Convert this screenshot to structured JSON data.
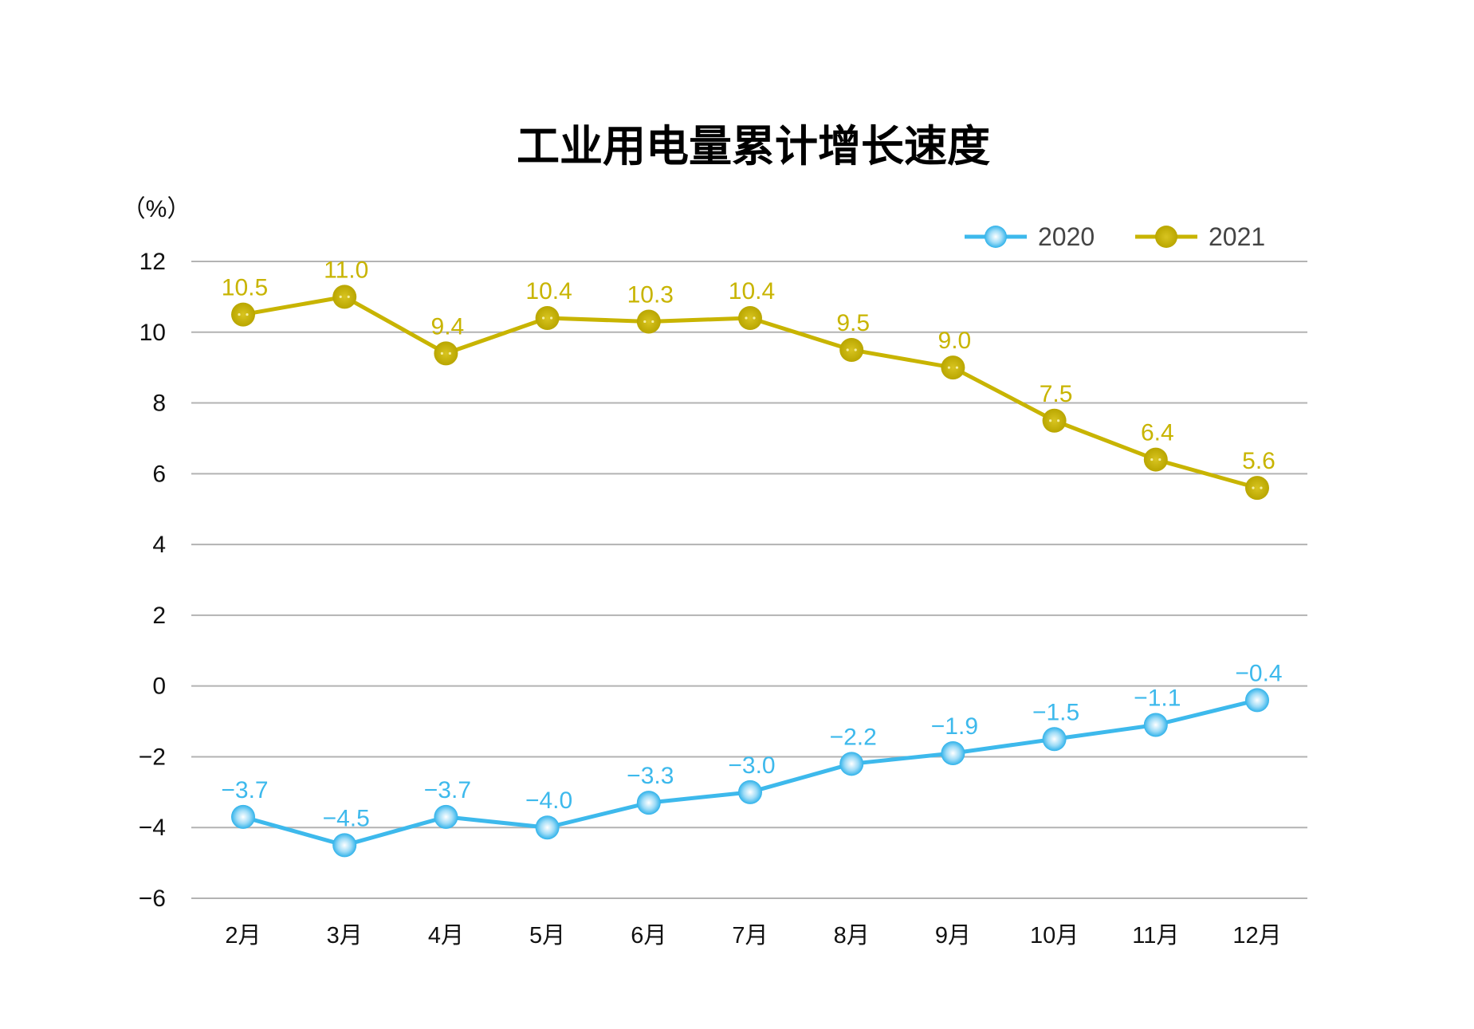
{
  "chart_data": {
    "type": "line",
    "title": "工业用电量累计增长速度",
    "ylabel": "（%）",
    "xlabel": "",
    "categories": [
      "2月",
      "3月",
      "4月",
      "5月",
      "6月",
      "7月",
      "8月",
      "9月",
      "10月",
      "11月",
      "12月"
    ],
    "ylim": [
      -6,
      12
    ],
    "yticks": [
      12,
      10,
      8,
      6,
      4,
      2,
      0,
      -2,
      -4,
      -6
    ],
    "ytick_labels": [
      "12",
      "10",
      "8",
      "6",
      "4",
      "2",
      "0",
      "−2",
      "−4",
      "−6"
    ],
    "grid": true,
    "legend_position": "top-right",
    "series": [
      {
        "name": "2020",
        "color": "#3db9ec",
        "values": [
          -3.7,
          -4.5,
          -3.7,
          -4.0,
          -3.3,
          -3.0,
          -2.2,
          -1.9,
          -1.5,
          -1.1,
          -0.4
        ],
        "labels": [
          "−3.7",
          "−4.5",
          "−3.7",
          "−4.0",
          "−3.3",
          "−3.0",
          "−2.2",
          "−1.9",
          "−1.5",
          "−1.1",
          "−0.4"
        ]
      },
      {
        "name": "2021",
        "color": "#c8b400",
        "values": [
          10.5,
          11.0,
          9.4,
          10.4,
          10.3,
          10.4,
          9.5,
          9.0,
          7.5,
          6.4,
          5.6
        ],
        "labels": [
          "10.5",
          "11.0",
          "9.4",
          "10.4",
          "10.3",
          "10.4",
          "9.5",
          "9.0",
          "7.5",
          "6.4",
          "5.6"
        ]
      }
    ]
  }
}
